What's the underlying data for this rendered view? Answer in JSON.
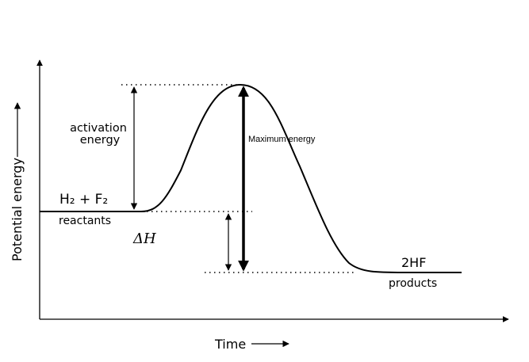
{
  "axes": {
    "y_label": "Potential energy",
    "x_label": "Time"
  },
  "labels": {
    "activation_line1": "activation",
    "activation_line2": "energy",
    "reactants_formula": "H₂ + F₂",
    "reactants": "reactants",
    "delta_h": "ΔH",
    "products_formula": "2HF",
    "products": "products",
    "maximum_energy": "Maximum energy"
  }
}
